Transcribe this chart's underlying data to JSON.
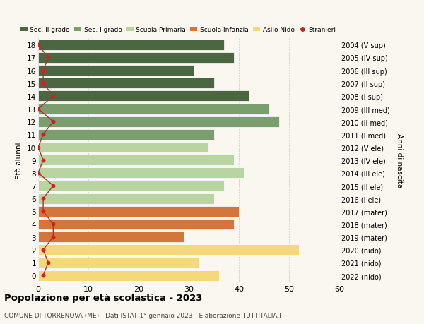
{
  "ages": [
    18,
    17,
    16,
    15,
    14,
    13,
    12,
    11,
    10,
    9,
    8,
    7,
    6,
    5,
    4,
    3,
    2,
    1,
    0
  ],
  "right_labels": [
    "2004 (V sup)",
    "2005 (IV sup)",
    "2006 (III sup)",
    "2007 (II sup)",
    "2008 (I sup)",
    "2009 (III med)",
    "2010 (II med)",
    "2011 (I med)",
    "2012 (V ele)",
    "2013 (IV ele)",
    "2014 (III ele)",
    "2015 (II ele)",
    "2016 (I ele)",
    "2017 (mater)",
    "2018 (mater)",
    "2019 (mater)",
    "2020 (nido)",
    "2021 (nido)",
    "2022 (nido)"
  ],
  "bar_values": [
    37,
    39,
    31,
    35,
    42,
    46,
    48,
    35,
    34,
    39,
    41,
    37,
    35,
    40,
    39,
    29,
    52,
    32,
    36
  ],
  "stranieri_values": [
    0,
    2,
    1,
    1,
    3,
    0,
    3,
    1,
    0,
    1,
    0,
    3,
    1,
    1,
    3,
    3,
    1,
    2,
    1
  ],
  "bar_colors": [
    "#4a6741",
    "#4a6741",
    "#4a6741",
    "#4a6741",
    "#4a6741",
    "#7a9e6e",
    "#7a9e6e",
    "#7a9e6e",
    "#b8d4a0",
    "#b8d4a0",
    "#b8d4a0",
    "#b8d4a0",
    "#b8d4a0",
    "#d4763b",
    "#d4763b",
    "#d4763b",
    "#f5d87a",
    "#f5d87a",
    "#f5d87a"
  ],
  "legend_labels": [
    "Sec. II grado",
    "Sec. I grado",
    "Scuola Primaria",
    "Scuola Infanzia",
    "Asilo Nido",
    "Stranieri"
  ],
  "legend_colors": [
    "#4a6741",
    "#7a9e6e",
    "#b8d4a0",
    "#d4763b",
    "#f5d87a",
    "#cc2222"
  ],
  "ylabel_left": "Età alunni",
  "ylabel_right": "Anni di nascita",
  "title": "Popolazione per età scolastica - 2023",
  "subtitle": "COMUNE DI TORRENOVA (ME) - Dati ISTAT 1° gennaio 2023 - Elaborazione TUTTITALIA.IT",
  "xlim": [
    0,
    60
  ],
  "xticks": [
    0,
    10,
    20,
    30,
    40,
    50,
    60
  ],
  "background_color": "#faf6f0",
  "stranieri_color": "#cc2222",
  "stranieri_line_color": "#aa3333"
}
